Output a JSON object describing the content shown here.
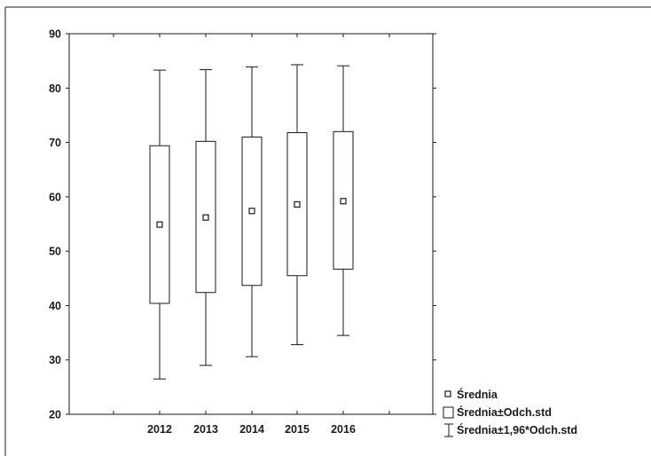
{
  "chart_data": {
    "type": "box",
    "categories": [
      "2012",
      "2013",
      "2014",
      "2015",
      "2016"
    ],
    "ylim": [
      20,
      90
    ],
    "yticks": [
      20,
      30,
      40,
      50,
      60,
      70,
      80,
      90
    ],
    "grid": false,
    "legend_position": "bottom-right",
    "series": [
      {
        "name": "Średnia",
        "values": [
          54.9,
          56.2,
          57.4,
          58.6,
          59.2
        ]
      },
      {
        "name": "Średnia±Odch.std",
        "low": [
          40.4,
          42.4,
          43.7,
          45.5,
          46.7
        ],
        "high": [
          69.4,
          70.2,
          71.0,
          71.8,
          72.0
        ]
      },
      {
        "name": "Średnia±1,96*Odch.std",
        "low": [
          26.5,
          29.0,
          30.6,
          32.8,
          34.5
        ],
        "high": [
          83.3,
          83.4,
          83.9,
          84.3,
          84.1
        ]
      }
    ]
  }
}
